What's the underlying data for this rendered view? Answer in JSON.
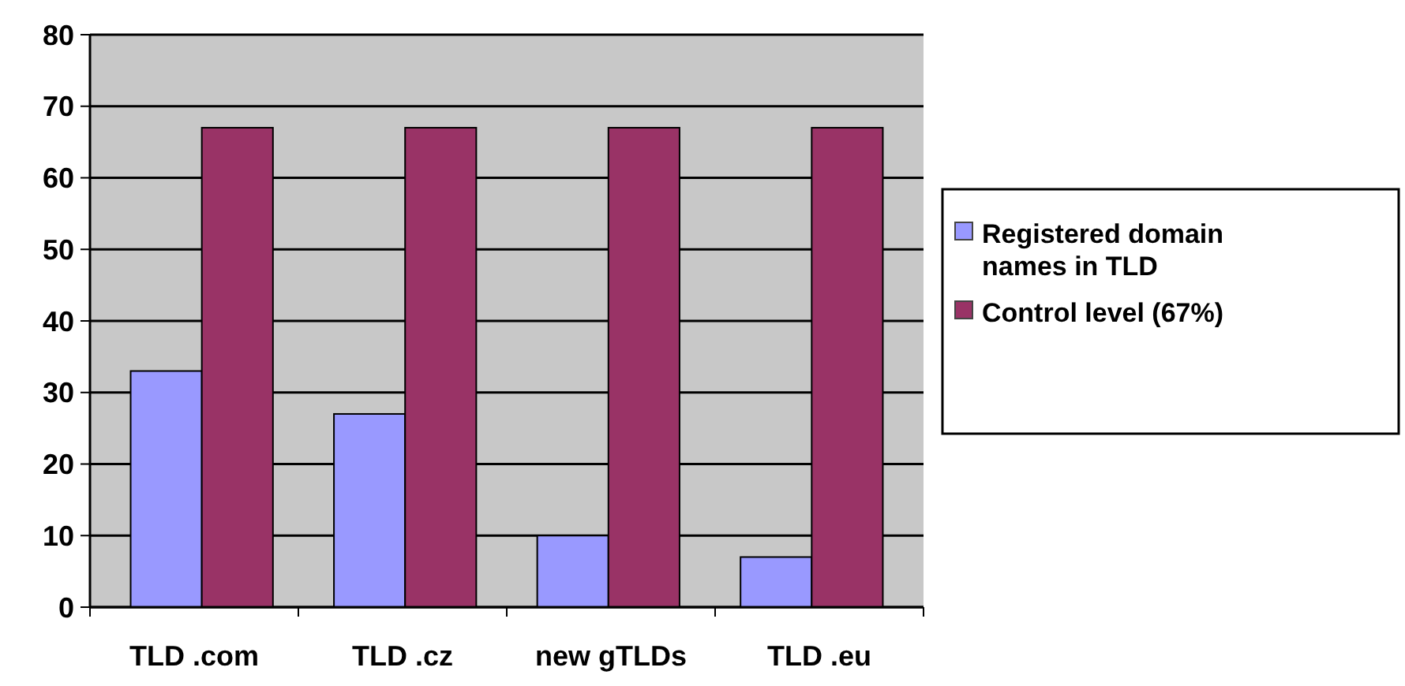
{
  "chart_data": {
    "type": "bar",
    "categories": [
      "TLD .com",
      "TLD .cz",
      "new gTLDs",
      "TLD .eu"
    ],
    "series": [
      {
        "name": "Registered domain names in TLD",
        "color": "#9999ff",
        "values": [
          33,
          27,
          10,
          7
        ]
      },
      {
        "name": "Control level (67%)",
        "color": "#993366",
        "values": [
          67,
          67,
          67,
          67
        ]
      }
    ],
    "ylim": [
      0,
      80
    ],
    "yticks": [
      0,
      10,
      20,
      30,
      40,
      50,
      60,
      70,
      80
    ],
    "grid": "y",
    "legend": "right"
  }
}
